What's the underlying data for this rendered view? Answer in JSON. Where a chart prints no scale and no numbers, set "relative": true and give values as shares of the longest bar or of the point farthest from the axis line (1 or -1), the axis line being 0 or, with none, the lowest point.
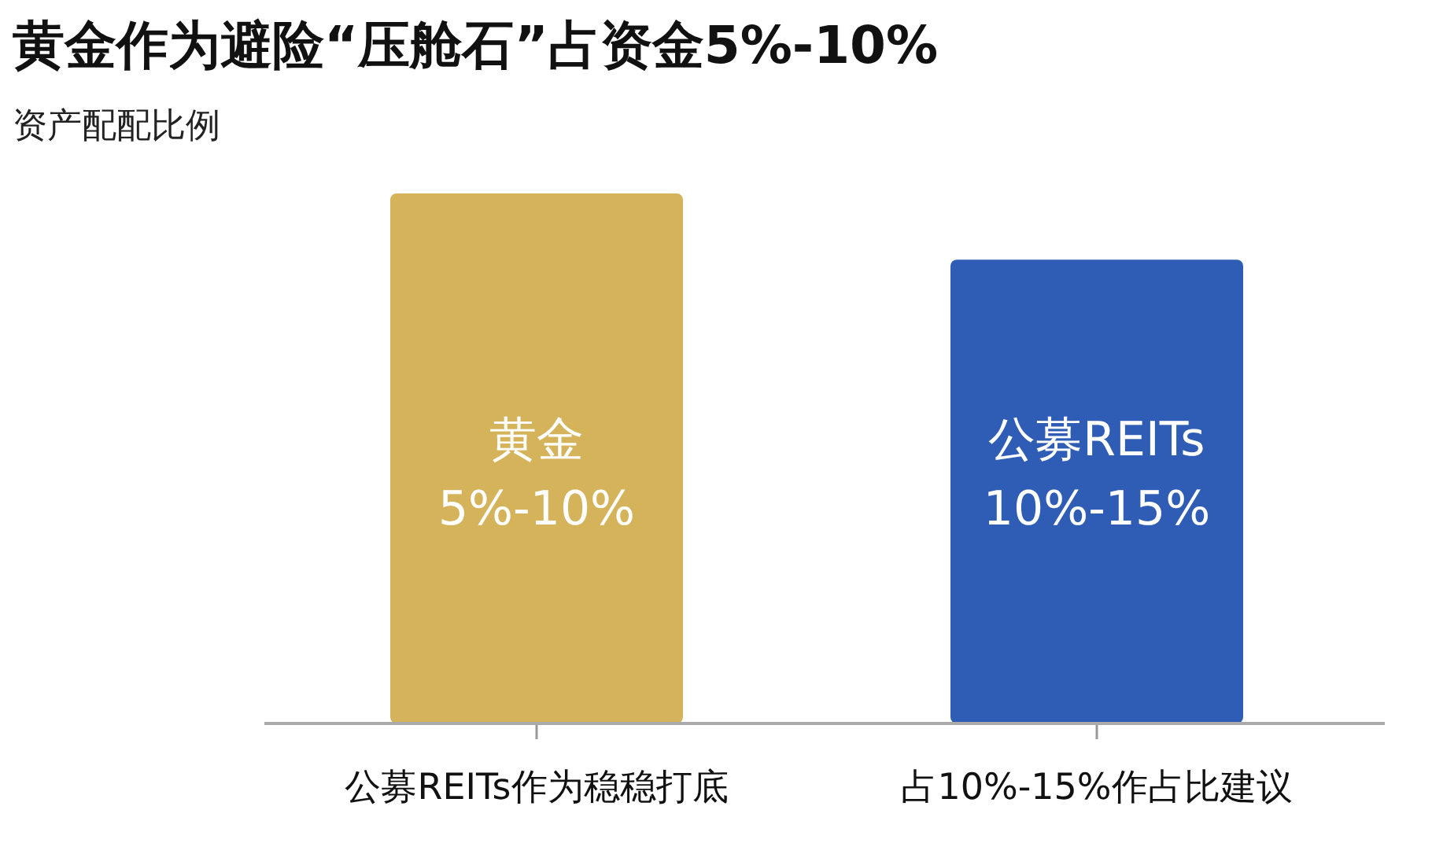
{
  "chart_data": {
    "type": "bar",
    "relative": true,
    "title": "黄金作为避险“压舱石”占资金5%-10%",
    "subtitle": "资产配配比例",
    "categories": [
      "公募REITs作为稳稳打底",
      "占10%-15%作占比建议"
    ],
    "values": [
      1,
      0.875
    ],
    "colors": [
      "#d4b35a",
      "#2f5db5"
    ],
    "annotations": [
      "黄金\n5%-10%",
      "公募REITs\n10%-15%"
    ]
  }
}
